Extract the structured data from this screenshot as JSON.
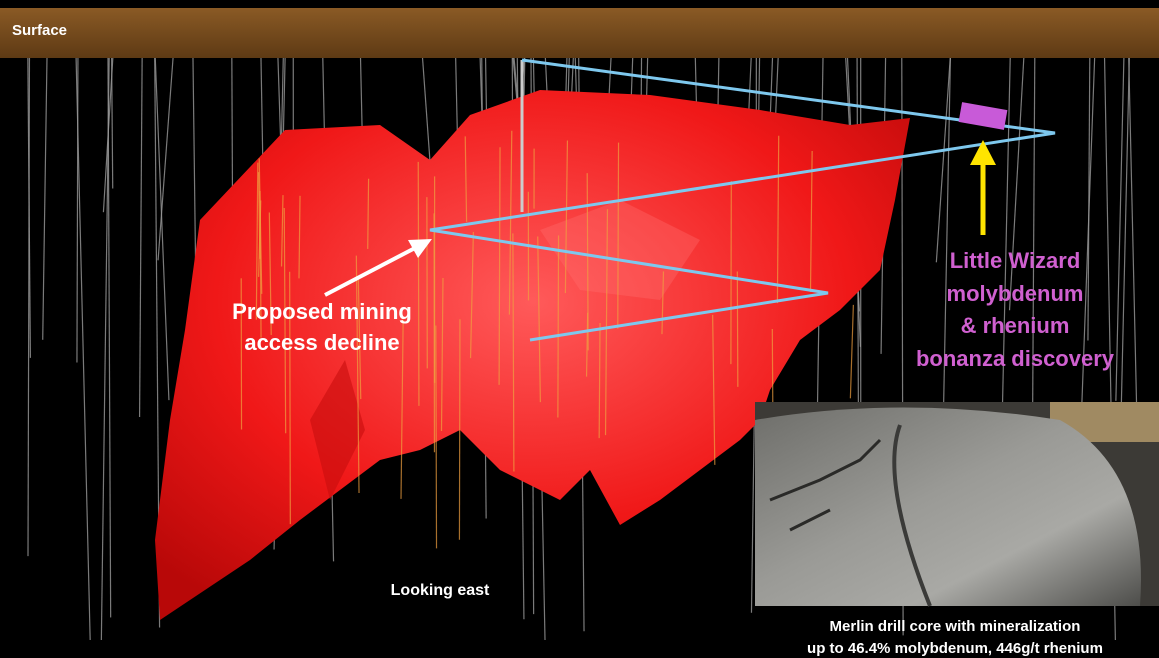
{
  "surface_label": "Surface",
  "decline_label": [
    "Proposed mining",
    "access decline"
  ],
  "discovery_label": [
    "Little Wizard",
    "molybdenum",
    "& rhenium",
    "bonanza discovery"
  ],
  "view_label": "Looking east",
  "photo_caption": [
    "Merlin drill core with mineralization",
    "up to 46.4% molybdenum, 446g/t rhenium"
  ]
}
